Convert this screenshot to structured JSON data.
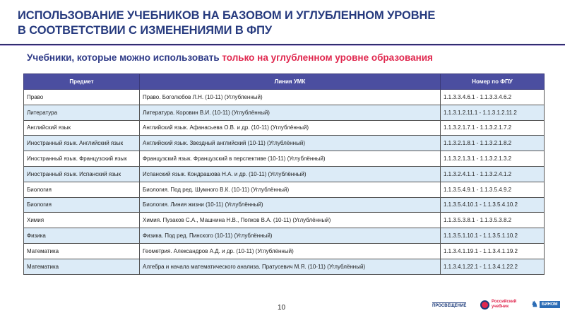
{
  "title": {
    "line1": "ИСПОЛЬЗОВАНИЕ УЧЕБНИКОВ НА БАЗОВОМ И УГЛУБЛЕННОМ УРОВНЕ",
    "line2": "В СООТВЕТСТВИИ С ИЗМЕНЕНИЯМИ В ФПУ"
  },
  "subtitle": {
    "normal": "Учебники, которые можно использовать ",
    "highlight": "только на углубленном уровне образования"
  },
  "colors": {
    "title": "#263a7e",
    "highlight": "#e0284f",
    "header_bg": "#4b4ea0",
    "alt_row": "#dcebf7"
  },
  "table": {
    "headers": [
      "Предмет",
      "Линия УМК",
      "Номер по ФПУ"
    ],
    "rows": [
      [
        "Право",
        "Право. Боголюбов Л.Н. (10-11) (Углубленный)",
        "1.1.3.3.4.6.1 - 1.1.3.3.4.6.2"
      ],
      [
        "Литература",
        "Литература. Коровин В.И. (10-11) (Углублённый)",
        "1.1.3.1.2.11.1 - 1.1.3.1.2.11.2"
      ],
      [
        "Английский язык",
        "Английский язык. Афанасьева О.В. и др. (10-11) (Углублённый)",
        "1.1.3.2.1.7.1 - 1.1.3.2.1.7.2"
      ],
      [
        "Иностранный язык. Английский язык",
        "Английский язык. Звездный английский (10-11) (Углублённый)",
        "1.1.3.2.1.8.1 - 1.1.3.2.1.8.2"
      ],
      [
        "Иностранный язык. Французский язык",
        "Французский язык. Французский в перспективе (10-11) (Углублённый)",
        "1.1.3.2.1.3.1 - 1.1.3.2.1.3.2"
      ],
      [
        "Иностранный язык. Испанский язык",
        "Испанский язык. Кондрашова Н.А. и др. (10-11) (Углублённый)",
        "1.1.3.2.4.1.1 - 1.1.3.2.4.1.2"
      ],
      [
        "Биология",
        "Биология. Под ред. Шумного В.К. (10-11) (Углублённый)",
        "1.1.3.5.4.9.1 - 1.1.3.5.4.9.2"
      ],
      [
        "Биология",
        "Биология. Линия жизни (10-11) (Углублённый)",
        "1.1.3.5.4.10.1 - 1.1.3.5.4.10.2"
      ],
      [
        "Химия",
        "Химия. Пузаков С.А., Машнина Н.В., Попков В.А. (10-11) (Углублённый)",
        "1.1.3.5.3.8.1 - 1.1.3.5.3.8.2"
      ],
      [
        "Физика",
        "Физика. Под ред. Пинского (10-11) (Углублённый)",
        "1.1.3.5.1.10.1 - 1.1.3.5.1.10.2"
      ],
      [
        "Математика",
        "Геометрия. Александров А.Д. и др. (10-11)  (Углублённый)",
        "1.1.3.4.1.19.1 - 1.1.3.4.1.19.2"
      ],
      [
        "Математика",
        "Алгебра и начала математического анализа. Пратусевич М.Я. (10-11) (Углублённый)",
        "1.1.3.4.1.22.1 - 1.1.3.4.1.22.2"
      ]
    ]
  },
  "page_number": "10",
  "logos": [
    "ПРОСВЕЩЕНИЕ",
    "Российский учебник",
    "БИНОМ"
  ]
}
